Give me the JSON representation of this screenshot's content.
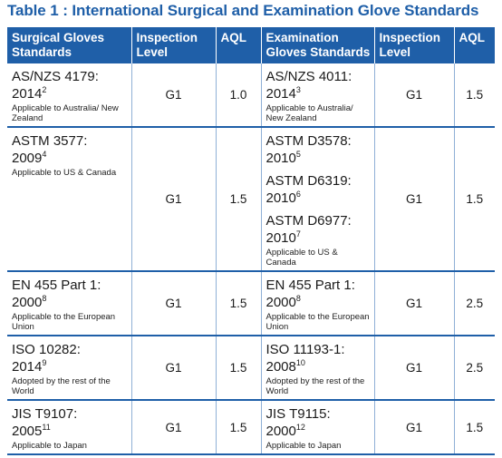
{
  "title": "Table 1 : International Surgical and Examination Glove Standards",
  "headers": {
    "surgical": "Surgical Gloves Standards",
    "inspection1": "Inspection Level",
    "aql1": "AQL",
    "exam": "Examination Gloves Standards",
    "inspection2": "Inspection Level",
    "aql2": "AQL"
  },
  "rows": [
    {
      "surgical": {
        "line1": "AS/NZS 4179:",
        "line2": "2014",
        "sup": "2",
        "note": "Applicable to Australia/ New Zealand"
      },
      "insp1": "G1",
      "aql1": "1.0",
      "exam": [
        {
          "line1": "AS/NZS 4011:",
          "line2": "2014",
          "sup": "3",
          "note": "Applicable to Australia/ New Zealand"
        }
      ],
      "insp2": "G1",
      "aql2": "1.5"
    },
    {
      "surgical": {
        "line1": "ASTM 3577:",
        "line2": "2009",
        "sup": "4",
        "note": "Applicable to US & Canada"
      },
      "insp1": "G1",
      "aql1": "1.5",
      "exam": [
        {
          "line1": "ASTM D3578:",
          "line2": "2010",
          "sup": "5",
          "note": ""
        },
        {
          "line1": "ASTM D6319:",
          "line2": "2010",
          "sup": "6",
          "note": ""
        },
        {
          "line1": "ASTM D6977:",
          "line2": "2010",
          "sup": "7",
          "note": "Applicable to US & Canada"
        }
      ],
      "insp2": "G1",
      "aql2": "1.5"
    },
    {
      "surgical": {
        "line1": "EN 455 Part 1:",
        "line2": "2000",
        "sup": "8",
        "note": "Applicable to the European Union"
      },
      "insp1": "G1",
      "aql1": "1.5",
      "exam": [
        {
          "line1": "EN 455 Part 1:",
          "line2": "2000",
          "sup": "8",
          "note": "Applicable to the European Union"
        }
      ],
      "insp2": "G1",
      "aql2": "2.5"
    },
    {
      "surgical": {
        "line1": "ISO 10282:",
        "line2": "2014",
        "sup": "9",
        "note": "Adopted by the rest of the World"
      },
      "insp1": "G1",
      "aql1": "1.5",
      "exam": [
        {
          "line1": "ISO 11193-1:",
          "line2": "2008",
          "sup": "10",
          "note": "Adopted by the rest of the World"
        }
      ],
      "insp2": "G1",
      "aql2": "2.5"
    },
    {
      "surgical": {
        "line1": "JIS T9107:",
        "line2": "2005",
        "sup": "11",
        "note": "Applicable to Japan"
      },
      "insp1": "G1",
      "aql1": "1.5",
      "exam": [
        {
          "line1": "JIS T9115:",
          "line2": "2000",
          "sup": "12",
          "note": "Applicable to Japan"
        }
      ],
      "insp2": "G1",
      "aql2": "1.5"
    }
  ]
}
